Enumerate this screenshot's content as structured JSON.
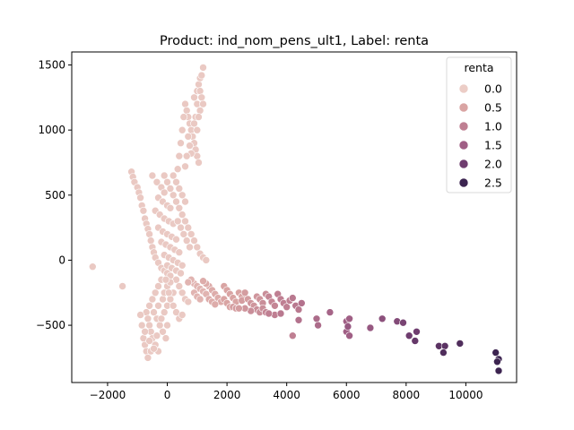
{
  "chart_data": {
    "type": "scatter",
    "title": "Product: ind_nom_pens_ult1, Label: renta",
    "xlabel": "",
    "ylabel": "",
    "xlim": [
      -3200,
      11700
    ],
    "ylim": [
      -940,
      1600
    ],
    "xticks": [
      -2000,
      0,
      2000,
      4000,
      6000,
      8000,
      10000
    ],
    "yticks": [
      -500,
      0,
      500,
      1000,
      1500
    ],
    "grid": false,
    "legend": {
      "title": "renta",
      "placement": "top-right",
      "entries": [
        {
          "label": "0.0",
          "value": 0.0,
          "color": "#eccdc6"
        },
        {
          "label": "0.5",
          "value": 0.5,
          "color": "#d9a4a3"
        },
        {
          "label": "1.0",
          "value": 1.0,
          "color": "#bf7f92"
        },
        {
          "label": "1.5",
          "value": 1.5,
          "color": "#a05f85"
        },
        {
          "label": "2.0",
          "value": 2.0,
          "color": "#6f3d6f"
        },
        {
          "label": "2.5",
          "value": 2.5,
          "color": "#3c2450"
        }
      ]
    },
    "hue": "renta",
    "marker_edge_color": "#ffffff",
    "points": [
      [
        -2500,
        -50,
        0.05
      ],
      [
        -1500,
        -200,
        0.05
      ],
      [
        -1200,
        680,
        0.05
      ],
      [
        -1150,
        640,
        0.05
      ],
      [
        -1100,
        600,
        0.05
      ],
      [
        -1000,
        560,
        0.05
      ],
      [
        -950,
        520,
        0.05
      ],
      [
        -900,
        480,
        0.05
      ],
      [
        -850,
        420,
        0.05
      ],
      [
        -800,
        380,
        0.05
      ],
      [
        -750,
        320,
        0.05
      ],
      [
        -700,
        280,
        0.05
      ],
      [
        -650,
        240,
        0.05
      ],
      [
        -600,
        200,
        0.05
      ],
      [
        -550,
        150,
        0.05
      ],
      [
        -500,
        100,
        0.05
      ],
      [
        -450,
        60,
        0.05
      ],
      [
        -400,
        20,
        0.05
      ],
      [
        -300,
        -20,
        0.05
      ],
      [
        -200,
        -60,
        0.05
      ],
      [
        -100,
        -80,
        0.05
      ],
      [
        0,
        -100,
        0.05
      ],
      [
        -500,
        650,
        0.05
      ],
      [
        -350,
        600,
        0.05
      ],
      [
        -200,
        560,
        0.05
      ],
      [
        -100,
        520,
        0.05
      ],
      [
        -300,
        480,
        0.05
      ],
      [
        -150,
        450,
        0.05
      ],
      [
        0,
        420,
        0.05
      ],
      [
        100,
        400,
        0.05
      ],
      [
        -400,
        380,
        0.05
      ],
      [
        -250,
        350,
        0.05
      ],
      [
        -100,
        320,
        0.05
      ],
      [
        50,
        300,
        0.05
      ],
      [
        200,
        280,
        0.05
      ],
      [
        -300,
        250,
        0.05
      ],
      [
        -150,
        220,
        0.05
      ],
      [
        0,
        200,
        0.05
      ],
      [
        150,
        180,
        0.05
      ],
      [
        300,
        160,
        0.05
      ],
      [
        -200,
        140,
        0.05
      ],
      [
        -50,
        120,
        0.05
      ],
      [
        100,
        100,
        0.05
      ],
      [
        250,
        80,
        0.05
      ],
      [
        400,
        60,
        0.05
      ],
      [
        -100,
        40,
        0.05
      ],
      [
        50,
        20,
        0.05
      ],
      [
        200,
        0,
        0.05
      ],
      [
        350,
        -20,
        0.05
      ],
      [
        500,
        -40,
        0.05
      ],
      [
        0,
        -40,
        0.05
      ],
      [
        150,
        -60,
        0.05
      ],
      [
        300,
        -80,
        0.05
      ],
      [
        450,
        -100,
        0.05
      ],
      [
        100,
        -120,
        0.05
      ],
      [
        -700,
        -400,
        0.05
      ],
      [
        -650,
        -450,
        0.05
      ],
      [
        -600,
        -500,
        0.05
      ],
      [
        -550,
        -550,
        0.05
      ],
      [
        -500,
        -600,
        0.05
      ],
      [
        -750,
        -650,
        0.05
      ],
      [
        -700,
        -700,
        0.05
      ],
      [
        -650,
        -750,
        0.05
      ],
      [
        -800,
        -600,
        0.05
      ],
      [
        -850,
        -500,
        0.05
      ],
      [
        -600,
        -350,
        0.05
      ],
      [
        -500,
        -300,
        0.05
      ],
      [
        -400,
        -250,
        0.05
      ],
      [
        -300,
        -200,
        0.05
      ],
      [
        -200,
        -150,
        0.05
      ],
      [
        -450,
        -400,
        0.05
      ],
      [
        -350,
        -450,
        0.05
      ],
      [
        -250,
        -500,
        0.05
      ],
      [
        -150,
        -550,
        0.05
      ],
      [
        -50,
        -600,
        0.05
      ],
      [
        -400,
        -650,
        0.05
      ],
      [
        -300,
        -700,
        0.05
      ],
      [
        -550,
        -700,
        0.05
      ],
      [
        -200,
        -450,
        0.05
      ],
      [
        -100,
        -400,
        0.05
      ],
      [
        0,
        -350,
        0.05
      ],
      [
        100,
        -300,
        0.05
      ],
      [
        200,
        -250,
        0.05
      ],
      [
        -300,
        -350,
        0.05
      ],
      [
        -150,
        -300,
        0.05
      ],
      [
        -900,
        -420,
        0.05
      ],
      [
        -750,
        -550,
        0.05
      ],
      [
        -600,
        -620,
        0.05
      ],
      [
        -450,
        -680,
        0.05
      ],
      [
        -350,
        -580,
        0.05
      ],
      [
        600,
        1200,
        0.05
      ],
      [
        650,
        1150,
        0.05
      ],
      [
        700,
        1100,
        0.05
      ],
      [
        750,
        1050,
        0.05
      ],
      [
        800,
        1000,
        0.05
      ],
      [
        850,
        950,
        0.05
      ],
      [
        900,
        900,
        0.05
      ],
      [
        950,
        850,
        0.05
      ],
      [
        1000,
        800,
        0.05
      ],
      [
        1050,
        750,
        0.05
      ],
      [
        550,
        1100,
        0.05
      ],
      [
        500,
        1000,
        0.05
      ],
      [
        450,
        900,
        0.05
      ],
      [
        400,
        800,
        0.05
      ],
      [
        350,
        700,
        0.05
      ],
      [
        700,
        950,
        0.05
      ],
      [
        750,
        880,
        0.05
      ],
      [
        800,
        820,
        0.05
      ],
      [
        650,
        800,
        0.05
      ],
      [
        600,
        720,
        0.05
      ],
      [
        900,
        1250,
        0.05
      ],
      [
        1000,
        1300,
        0.05
      ],
      [
        1050,
        1350,
        0.05
      ],
      [
        1100,
        1400,
        0.05
      ],
      [
        1200,
        1480,
        0.05
      ],
      [
        1150,
        1420,
        0.05
      ],
      [
        1100,
        1300,
        0.05
      ],
      [
        1000,
        1200,
        0.05
      ],
      [
        950,
        1100,
        0.05
      ],
      [
        900,
        1050,
        0.05
      ],
      [
        1150,
        1250,
        0.05
      ],
      [
        1200,
        1200,
        0.05
      ],
      [
        1100,
        1150,
        0.05
      ],
      [
        1050,
        1100,
        0.05
      ],
      [
        1000,
        1000,
        0.05
      ],
      [
        -100,
        650,
        0.05
      ],
      [
        0,
        600,
        0.05
      ],
      [
        100,
        550,
        0.05
      ],
      [
        200,
        500,
        0.05
      ],
      [
        300,
        450,
        0.05
      ],
      [
        400,
        400,
        0.05
      ],
      [
        500,
        350,
        0.05
      ],
      [
        600,
        300,
        0.05
      ],
      [
        700,
        250,
        0.05
      ],
      [
        800,
        200,
        0.05
      ],
      [
        900,
        150,
        0.05
      ],
      [
        1000,
        100,
        0.05
      ],
      [
        1100,
        50,
        0.05
      ],
      [
        1200,
        20,
        0.05
      ],
      [
        1300,
        0,
        0.05
      ],
      [
        400,
        550,
        0.05
      ],
      [
        500,
        500,
        0.05
      ],
      [
        300,
        600,
        0.05
      ],
      [
        200,
        650,
        0.05
      ],
      [
        600,
        450,
        0.05
      ],
      [
        350,
        300,
        0.05
      ],
      [
        450,
        250,
        0.05
      ],
      [
        550,
        200,
        0.05
      ],
      [
        650,
        150,
        0.05
      ],
      [
        750,
        100,
        0.05
      ],
      [
        300,
        -150,
        0.05
      ],
      [
        400,
        -200,
        0.05
      ],
      [
        500,
        -250,
        0.05
      ],
      [
        600,
        -300,
        0.05
      ],
      [
        700,
        -320,
        0.05
      ],
      [
        200,
        -350,
        0.05
      ],
      [
        300,
        -400,
        0.05
      ],
      [
        400,
        -450,
        0.05
      ],
      [
        500,
        -420,
        0.05
      ],
      [
        0,
        -500,
        0.05
      ],
      [
        -100,
        -250,
        0.05
      ],
      [
        0,
        -200,
        0.05
      ],
      [
        100,
        -170,
        0.05
      ],
      [
        -50,
        -150,
        0.05
      ],
      [
        50,
        -250,
        0.05
      ],
      [
        900,
        -180,
        0.3
      ],
      [
        1000,
        -200,
        0.3
      ],
      [
        1100,
        -220,
        0.3
      ],
      [
        1200,
        -240,
        0.3
      ],
      [
        1300,
        -260,
        0.3
      ],
      [
        800,
        -150,
        0.3
      ],
      [
        700,
        -170,
        0.3
      ],
      [
        900,
        -250,
        0.3
      ],
      [
        1000,
        -280,
        0.3
      ],
      [
        1100,
        -300,
        0.3
      ],
      [
        1400,
        -200,
        0.4
      ],
      [
        1500,
        -230,
        0.4
      ],
      [
        1600,
        -260,
        0.4
      ],
      [
        1700,
        -290,
        0.4
      ],
      [
        1800,
        -320,
        0.4
      ],
      [
        1400,
        -300,
        0.4
      ],
      [
        1500,
        -320,
        0.4
      ],
      [
        1600,
        -340,
        0.4
      ],
      [
        1300,
        -180,
        0.4
      ],
      [
        1200,
        -160,
        0.4
      ],
      [
        1900,
        -200,
        0.5
      ],
      [
        2000,
        -230,
        0.5
      ],
      [
        2100,
        -260,
        0.5
      ],
      [
        2200,
        -290,
        0.5
      ],
      [
        2300,
        -320,
        0.5
      ],
      [
        1900,
        -300,
        0.5
      ],
      [
        2000,
        -330,
        0.5
      ],
      [
        2100,
        -360,
        0.5
      ],
      [
        2400,
        -250,
        0.5
      ],
      [
        2500,
        -280,
        0.5
      ],
      [
        2200,
        -360,
        0.6
      ],
      [
        2300,
        -370,
        0.6
      ],
      [
        2500,
        -310,
        0.6
      ],
      [
        2600,
        -250,
        0.6
      ],
      [
        2700,
        -300,
        0.6
      ],
      [
        2800,
        -330,
        0.7
      ],
      [
        2900,
        -350,
        0.7
      ],
      [
        3000,
        -280,
        0.7
      ],
      [
        3100,
        -300,
        0.7
      ],
      [
        3200,
        -330,
        0.8
      ],
      [
        3000,
        -380,
        0.8
      ],
      [
        3100,
        -400,
        0.8
      ],
      [
        3200,
        -370,
        0.8
      ],
      [
        3300,
        -260,
        0.8
      ],
      [
        3400,
        -280,
        0.9
      ],
      [
        3500,
        -320,
        0.9
      ],
      [
        3600,
        -350,
        0.9
      ],
      [
        3300,
        -400,
        0.9
      ],
      [
        3700,
        -260,
        1.0
      ],
      [
        3800,
        -300,
        1.0
      ],
      [
        3900,
        -330,
        1.0
      ],
      [
        4000,
        -360,
        1.0
      ],
      [
        4100,
        -310,
        1.0
      ],
      [
        4200,
        -290,
        1.1
      ],
      [
        4300,
        -350,
        1.1
      ],
      [
        4400,
        -380,
        1.1
      ],
      [
        4500,
        -330,
        1.2
      ],
      [
        4400,
        -460,
        1.2
      ],
      [
        4200,
        -580,
        1.0
      ],
      [
        3600,
        -420,
        1.0
      ],
      [
        3400,
        -410,
        1.0
      ],
      [
        3800,
        -410,
        1.1
      ],
      [
        2800,
        -390,
        0.8
      ],
      [
        2600,
        -370,
        0.7
      ],
      [
        2400,
        -370,
        0.6
      ],
      [
        5000,
        -450,
        1.3
      ],
      [
        5050,
        -500,
        1.3
      ],
      [
        5450,
        -400,
        1.4
      ],
      [
        6000,
        -470,
        1.5
      ],
      [
        6100,
        -450,
        1.5
      ],
      [
        6000,
        -550,
        1.5
      ],
      [
        6100,
        -580,
        1.5
      ],
      [
        6050,
        -510,
        1.6
      ],
      [
        6800,
        -520,
        1.6
      ],
      [
        7200,
        -450,
        1.7
      ],
      [
        7700,
        -470,
        1.8
      ],
      [
        7900,
        -480,
        1.9
      ],
      [
        8100,
        -580,
        2.0
      ],
      [
        8300,
        -620,
        2.1
      ],
      [
        8350,
        -550,
        2.0
      ],
      [
        9100,
        -660,
        2.2
      ],
      [
        9300,
        -660,
        2.2
      ],
      [
        9250,
        -710,
        2.3
      ],
      [
        9800,
        -640,
        2.3
      ],
      [
        11000,
        -710,
        2.6
      ],
      [
        11100,
        -760,
        2.6
      ],
      [
        11050,
        -780,
        2.7
      ],
      [
        11100,
        -850,
        2.7
      ]
    ]
  }
}
